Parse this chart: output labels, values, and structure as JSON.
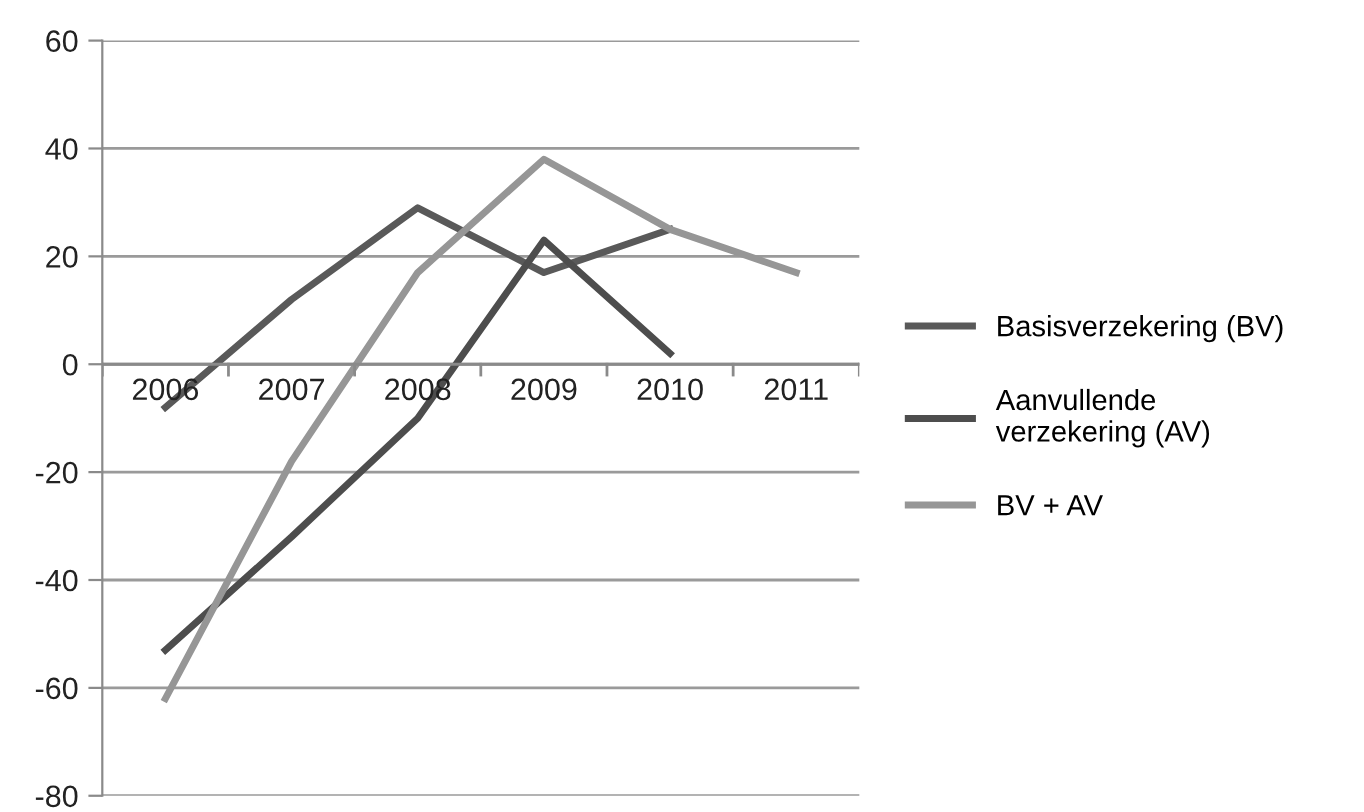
{
  "chart_data": {
    "type": "line",
    "categories": [
      "2006",
      "2007",
      "2008",
      "2009",
      "2010",
      "2011"
    ],
    "series": [
      {
        "name": "Basisverzekering (BV)",
        "color": "#595959",
        "values": [
          -8,
          12,
          29,
          17,
          25,
          null
        ]
      },
      {
        "name": "Aanvullende verzekering (AV)",
        "color": "#4d4d4d",
        "values": [
          -53,
          -32,
          -10,
          23,
          2,
          null
        ]
      },
      {
        "name": "BV + AV",
        "color": "#969696",
        "values": [
          -62,
          -18,
          17,
          38,
          25,
          17
        ]
      }
    ],
    "ylim": [
      -80,
      60
    ],
    "yticks": [
      -80,
      -60,
      -40,
      -20,
      0,
      20,
      40,
      60
    ],
    "grid": "y",
    "legend": "right",
    "marker": "none",
    "line_style": "solid"
  }
}
